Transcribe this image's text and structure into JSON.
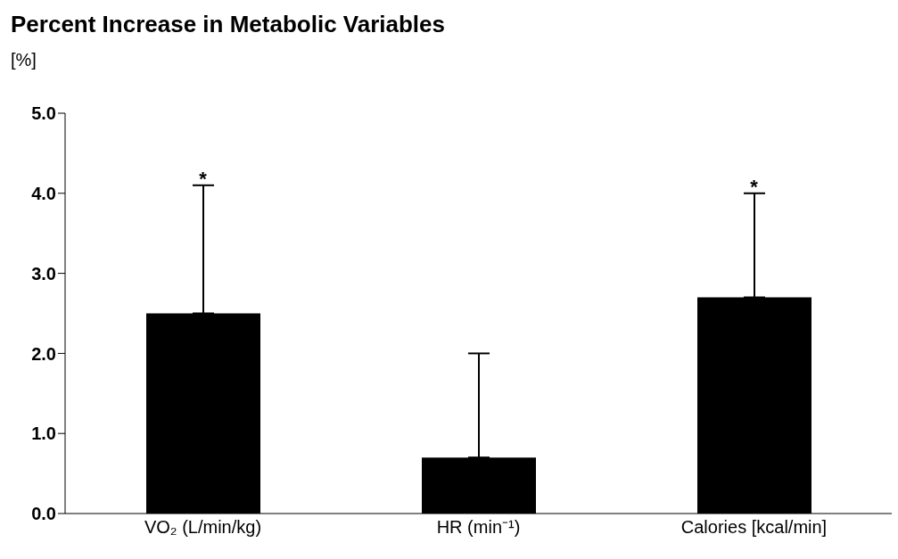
{
  "chart_data": {
    "type": "bar",
    "title": "Percent Increase in Metabolic Variables",
    "ylabel": "[%]",
    "categories": [
      "VO₂ (L/min/kg)",
      "HR (min⁻¹)",
      "Calories [kcal/min]"
    ],
    "values": [
      2.5,
      0.7,
      2.7
    ],
    "color": "#000000",
    "errors": [
      [
        2.5,
        4.1
      ],
      [
        0.7,
        2.0
      ],
      [
        2.7,
        4.0
      ]
    ],
    "ylim": [
      0,
      5
    ],
    "yticks": [
      {
        "value": 0,
        "label": "0.0"
      },
      {
        "value": 1,
        "label": "1.0"
      },
      {
        "value": 2,
        "label": "2.0"
      },
      {
        "value": 3,
        "label": "3.0"
      },
      {
        "value": 4,
        "label": "4.0"
      },
      {
        "value": 5,
        "label": "5.0"
      }
    ],
    "annotations": [
      {
        "text": "*",
        "x": "VO₂ (L/min/kg)",
        "y": 4.1
      },
      {
        "text": "*",
        "x": "Calories [kcal/min]",
        "y": 4.0
      }
    ],
    "grid": false,
    "legend": false
  }
}
